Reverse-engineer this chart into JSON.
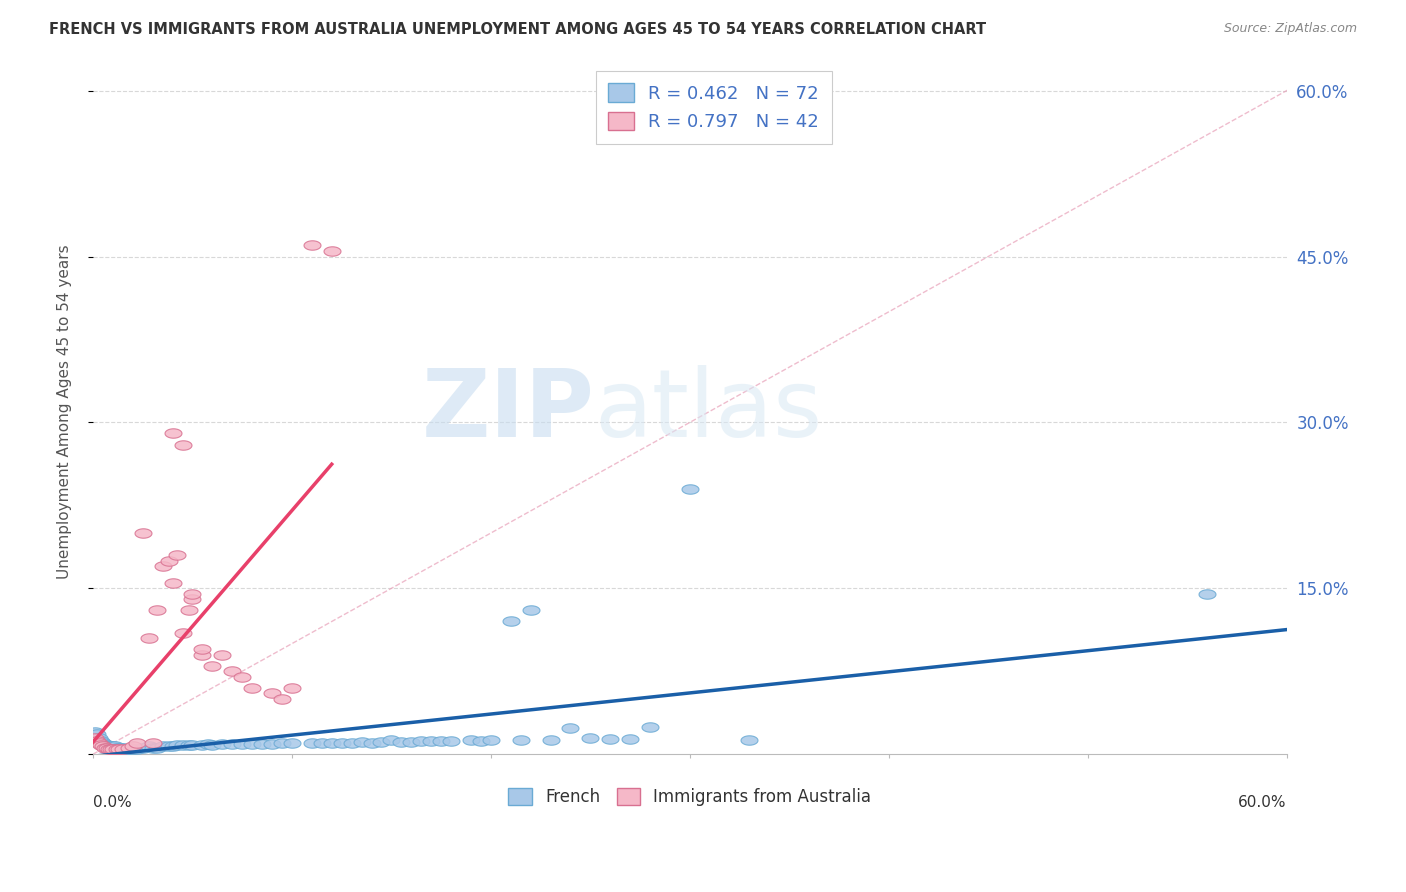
{
  "title": "FRENCH VS IMMIGRANTS FROM AUSTRALIA UNEMPLOYMENT AMONG AGES 45 TO 54 YEARS CORRELATION CHART",
  "source": "Source: ZipAtlas.com",
  "ylabel": "Unemployment Among Ages 45 to 54 years",
  "yticks_right": [
    0.0,
    0.15,
    0.3,
    0.45,
    0.6
  ],
  "ytick_labels_right": [
    "",
    "15.0%",
    "30.0%",
    "45.0%",
    "60.0%"
  ],
  "xlim": [
    0.0,
    0.6
  ],
  "ylim": [
    0.0,
    0.62
  ],
  "french_color": "#a8c8e8",
  "french_edge_color": "#6aaad4",
  "french_line_color": "#1a5fa8",
  "australia_color": "#f5b8c8",
  "australia_edge_color": "#d87090",
  "australia_line_color": "#e8406a",
  "diag_color": "#e8a0b8",
  "legend_R1": "R = 0.462",
  "legend_N1": "N = 72",
  "legend_R2": "R = 0.797",
  "legend_N2": "N = 42",
  "french_x": [
    0.001,
    0.002,
    0.003,
    0.004,
    0.005,
    0.006,
    0.007,
    0.008,
    0.009,
    0.01,
    0.011,
    0.012,
    0.013,
    0.014,
    0.015,
    0.016,
    0.017,
    0.018,
    0.02,
    0.022,
    0.025,
    0.028,
    0.03,
    0.032,
    0.035,
    0.038,
    0.04,
    0.042,
    0.045,
    0.048,
    0.05,
    0.055,
    0.058,
    0.06,
    0.065,
    0.07,
    0.075,
    0.08,
    0.085,
    0.09,
    0.095,
    0.1,
    0.11,
    0.115,
    0.12,
    0.125,
    0.13,
    0.135,
    0.14,
    0.145,
    0.15,
    0.155,
    0.16,
    0.165,
    0.17,
    0.175,
    0.18,
    0.19,
    0.195,
    0.2,
    0.21,
    0.215,
    0.22,
    0.23,
    0.24,
    0.25,
    0.26,
    0.27,
    0.28,
    0.3,
    0.33,
    0.56
  ],
  "french_y": [
    0.02,
    0.018,
    0.015,
    0.012,
    0.01,
    0.008,
    0.008,
    0.007,
    0.007,
    0.007,
    0.007,
    0.006,
    0.006,
    0.006,
    0.006,
    0.005,
    0.005,
    0.005,
    0.005,
    0.005,
    0.006,
    0.007,
    0.006,
    0.006,
    0.007,
    0.007,
    0.007,
    0.008,
    0.008,
    0.008,
    0.008,
    0.008,
    0.009,
    0.008,
    0.009,
    0.009,
    0.009,
    0.009,
    0.009,
    0.009,
    0.01,
    0.01,
    0.01,
    0.01,
    0.01,
    0.01,
    0.01,
    0.011,
    0.01,
    0.011,
    0.013,
    0.011,
    0.011,
    0.012,
    0.012,
    0.012,
    0.012,
    0.013,
    0.012,
    0.013,
    0.12,
    0.013,
    0.13,
    0.013,
    0.024,
    0.015,
    0.014,
    0.014,
    0.025,
    0.24,
    0.013,
    0.145
  ],
  "australia_x": [
    0.001,
    0.002,
    0.003,
    0.004,
    0.005,
    0.006,
    0.007,
    0.008,
    0.009,
    0.01,
    0.012,
    0.013,
    0.015,
    0.018,
    0.02,
    0.022,
    0.025,
    0.028,
    0.03,
    0.032,
    0.035,
    0.038,
    0.04,
    0.042,
    0.045,
    0.048,
    0.05,
    0.055,
    0.06,
    0.065,
    0.07,
    0.075,
    0.08,
    0.09,
    0.095,
    0.1,
    0.11,
    0.12,
    0.04,
    0.045,
    0.05,
    0.055
  ],
  "australia_y": [
    0.015,
    0.012,
    0.01,
    0.008,
    0.007,
    0.006,
    0.006,
    0.005,
    0.005,
    0.005,
    0.005,
    0.005,
    0.005,
    0.006,
    0.007,
    0.01,
    0.2,
    0.105,
    0.01,
    0.13,
    0.17,
    0.175,
    0.155,
    0.18,
    0.11,
    0.13,
    0.14,
    0.09,
    0.08,
    0.09,
    0.075,
    0.07,
    0.06,
    0.055,
    0.05,
    0.06,
    0.46,
    0.455,
    0.29,
    0.28,
    0.145,
    0.095
  ],
  "watermark_zip": "ZIP",
  "watermark_atlas": "atlas",
  "background_color": "#ffffff",
  "grid_color": "#d8d8d8"
}
